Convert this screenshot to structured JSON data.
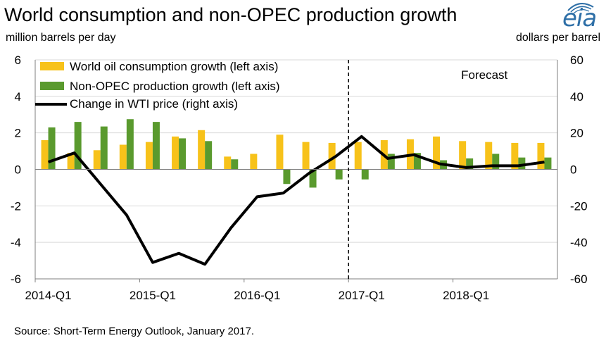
{
  "header": {
    "title": "World consumption and non-OPEC production growth",
    "left_unit": "million  barrels per day",
    "right_unit": "dollars per barrel"
  },
  "logo": {
    "text": "eia"
  },
  "footer": {
    "source": "Source: Short-Term Energy Outlook, January 2017."
  },
  "chart_data": {
    "type": "bar",
    "title": "World consumption and non-OPEC production growth",
    "categories": [
      "2014-Q1",
      "2014-Q2",
      "2014-Q3",
      "2014-Q4",
      "2015-Q1",
      "2015-Q2",
      "2015-Q3",
      "2015-Q4",
      "2016-Q1",
      "2016-Q2",
      "2016-Q3",
      "2016-Q4",
      "2017-Q1",
      "2017-Q2",
      "2017-Q3",
      "2017-Q4",
      "2018-Q1",
      "2018-Q2",
      "2018-Q3",
      "2018-Q4"
    ],
    "x_tick_labels": [
      "2014-Q1",
      "2015-Q1",
      "2016-Q1",
      "2017-Q1",
      "2018-Q1"
    ],
    "ylabel": "million  barrels per day",
    "y2label": "dollars per barrel",
    "ylim": [
      -6,
      6
    ],
    "y_ticks": [
      "6",
      "4",
      "2",
      "0",
      "-2",
      "-4",
      "-6"
    ],
    "y2lim": [
      -60,
      60
    ],
    "y2_ticks": [
      "60",
      "40",
      "20",
      "0",
      "-20",
      "-40",
      "-60"
    ],
    "forecast_label": "Forecast",
    "forecast_start": "2017-Q1",
    "legend_position": "top-left",
    "series": [
      {
        "name": "World oil consumption growth (left axis)",
        "type": "bar",
        "axis": "left",
        "color": "#f7c21a",
        "values": [
          1.6,
          0.9,
          1.05,
          1.35,
          1.5,
          1.8,
          2.15,
          0.7,
          0.85,
          1.9,
          1.5,
          1.45,
          1.5,
          1.6,
          1.65,
          1.8,
          1.55,
          1.5,
          1.45,
          1.45
        ]
      },
      {
        "name": "Non-OPEC production growth (left axis)",
        "type": "bar",
        "axis": "left",
        "color": "#5a9a2e",
        "values": [
          2.3,
          2.6,
          2.35,
          2.75,
          2.6,
          1.7,
          1.55,
          0.55,
          0.0,
          -0.8,
          -1.0,
          -0.55,
          -0.55,
          0.85,
          0.9,
          0.5,
          0.6,
          0.85,
          0.65,
          0.65
        ]
      },
      {
        "name": "Change in WTI price (right axis)",
        "type": "line",
        "axis": "right",
        "color": "#000000",
        "values": [
          4,
          9,
          -8,
          -25,
          -51,
          -46,
          -52,
          -32,
          -15,
          -13,
          -2,
          7,
          18,
          6,
          8,
          3,
          1,
          2,
          2,
          4
        ]
      }
    ]
  }
}
